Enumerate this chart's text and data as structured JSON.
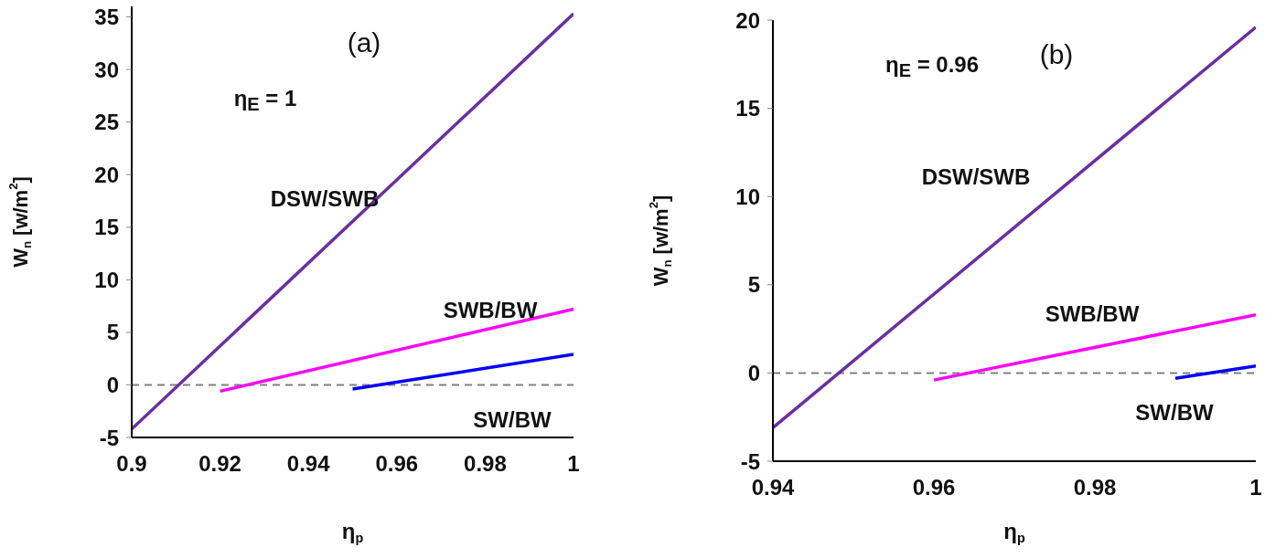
{
  "chart_data": [
    {
      "type": "line",
      "title": "(a)",
      "xlabel": "η$_{p}$",
      "ylabel": "W$_{n}$ [w/m$^{2}$]",
      "xlim": [
        0.9,
        1
      ],
      "ylim": [
        -5,
        36
      ],
      "xticks": [
        0.9,
        0.92,
        0.94,
        0.96,
        0.98,
        1
      ],
      "yticks": [
        -5,
        0,
        5,
        10,
        15,
        20,
        25,
        30,
        35
      ],
      "series": [
        {
          "name": "DSW/SWB",
          "color": "#6a2fa0",
          "x": [
            0.9,
            1
          ],
          "values": [
            -4.2,
            35.3
          ]
        },
        {
          "name": "SWB/BW",
          "color": "#ff00ff",
          "x": [
            0.92,
            1
          ],
          "values": [
            -0.6,
            7.2
          ]
        },
        {
          "name": "SW/BW",
          "color": "#0000ff",
          "x": [
            0.95,
            1
          ],
          "values": [
            -0.4,
            2.9
          ]
        }
      ],
      "ref_lines": [
        {
          "axis": "y",
          "value": 0,
          "color": "#808080",
          "line_style": "dashed"
        }
      ],
      "annotations": [
        "η$_{E}$ = 1"
      ]
    },
    {
      "type": "line",
      "title": "(b)",
      "xlabel": "η$_{p}$",
      "ylabel": "W$_{n}$ [w/m$^{2}$]",
      "xlim": [
        0.94,
        1
      ],
      "ylim": [
        -5,
        20
      ],
      "xticks": [
        0.94,
        0.96,
        0.98,
        1
      ],
      "yticks": [
        -5,
        0,
        5,
        10,
        15,
        20
      ],
      "series": [
        {
          "name": "DSW/SWB",
          "color": "#6a2fa0",
          "x": [
            0.94,
            1
          ],
          "values": [
            -3.1,
            19.6
          ]
        },
        {
          "name": "SWB/BW",
          "color": "#ff00ff",
          "x": [
            0.96,
            1
          ],
          "values": [
            -0.4,
            3.3
          ]
        },
        {
          "name": "SW/BW",
          "color": "#0000ff",
          "x": [
            0.99,
            1
          ],
          "values": [
            -0.3,
            0.4
          ]
        }
      ],
      "ref_lines": [
        {
          "axis": "y",
          "value": 0,
          "color": "#808080",
          "line_style": "dashed"
        }
      ],
      "annotations": [
        "η$_{E}$ = 0.96"
      ]
    }
  ]
}
